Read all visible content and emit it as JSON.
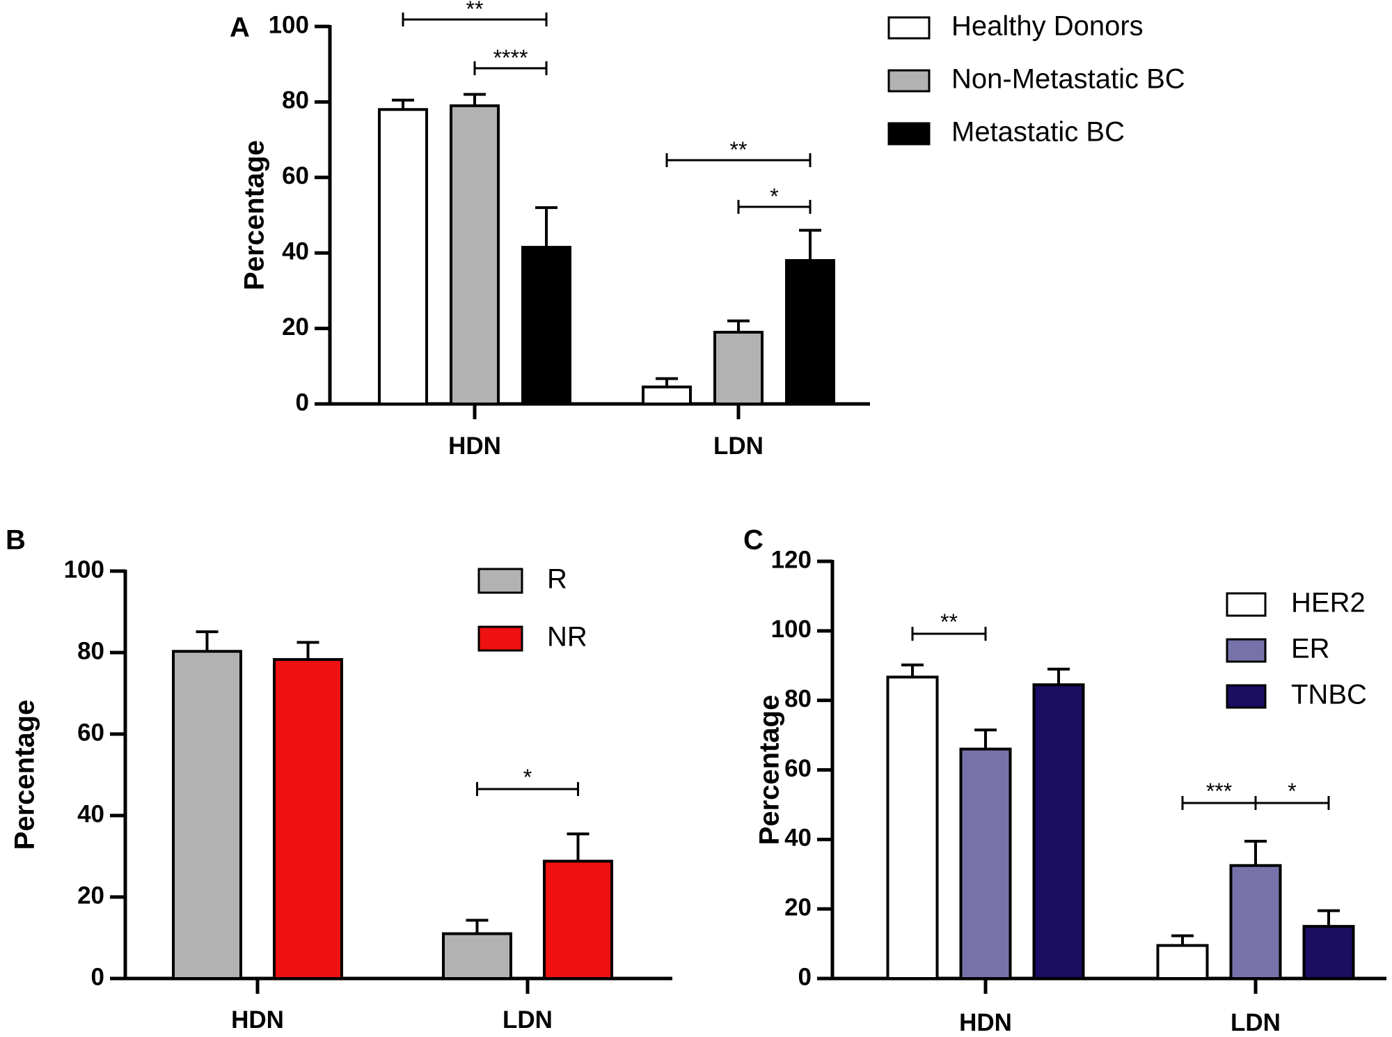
{
  "chart_data": [
    {
      "panel": "A",
      "type": "bar",
      "ylabel": "Percentage",
      "xlabel": "",
      "ylim": [
        0,
        100
      ],
      "yticks": [
        0,
        20,
        40,
        60,
        80,
        100
      ],
      "categories": [
        "HDN",
        "LDN"
      ],
      "legend_position": "top-right",
      "grid": false,
      "series": [
        {
          "name": "Healthy Donors",
          "color": "#ffffff",
          "values": [
            78,
            4.5
          ],
          "errors": [
            2.5,
            2.2
          ]
        },
        {
          "name": "Non-Metastatic BC",
          "color": "#b2b2b2",
          "values": [
            79,
            19
          ],
          "errors": [
            3,
            3
          ]
        },
        {
          "name": "Metastatic BC",
          "color": "#000000",
          "values": [
            41.5,
            38
          ],
          "errors": [
            10.5,
            8
          ]
        }
      ],
      "significance": [
        {
          "category": 0,
          "from": 0,
          "to": 2,
          "label": "**"
        },
        {
          "category": 0,
          "from": 1,
          "to": 2,
          "label": "****"
        },
        {
          "category": 1,
          "from": 0,
          "to": 2,
          "label": "**"
        },
        {
          "category": 1,
          "from": 1,
          "to": 2,
          "label": "*"
        }
      ]
    },
    {
      "panel": "B",
      "type": "bar",
      "ylabel": "Percentage",
      "xlabel": "",
      "ylim": [
        0,
        100
      ],
      "yticks": [
        0,
        20,
        40,
        60,
        80,
        100
      ],
      "categories": [
        "HDN",
        "LDN"
      ],
      "legend_position": "top-right",
      "grid": false,
      "series": [
        {
          "name": "R",
          "color": "#b2b2b2",
          "values": [
            80.3,
            11
          ],
          "errors": [
            4.8,
            3.3
          ]
        },
        {
          "name": "NR",
          "color": "#ee1111",
          "values": [
            78.3,
            28.8
          ],
          "errors": [
            4.2,
            6.7
          ]
        }
      ],
      "significance": [
        {
          "category": 1,
          "from": 0,
          "to": 1,
          "label": "*"
        }
      ]
    },
    {
      "panel": "C",
      "type": "bar",
      "ylabel": "Percentage",
      "xlabel": "",
      "ylim": [
        0,
        120
      ],
      "yticks": [
        0,
        20,
        40,
        60,
        80,
        100,
        120
      ],
      "categories": [
        "HDN",
        "LDN"
      ],
      "legend_position": "top-right",
      "grid": false,
      "series": [
        {
          "name": "HER2",
          "color": "#ffffff",
          "values": [
            86.7,
            9.5
          ],
          "errors": [
            3.5,
            2.8
          ]
        },
        {
          "name": "ER",
          "color": "#7773aa",
          "values": [
            66,
            32.5
          ],
          "errors": [
            5.5,
            7
          ]
        },
        {
          "name": "TNBC",
          "color": "#1a0d62",
          "values": [
            84.5,
            15
          ],
          "errors": [
            4.5,
            4.5
          ]
        }
      ],
      "significance": [
        {
          "category": 0,
          "from": 0,
          "to": 1,
          "label": "**"
        },
        {
          "category": 1,
          "from": 0,
          "to": 1,
          "label": "***"
        },
        {
          "category": 1,
          "from": 1,
          "to": 2,
          "label": "*"
        }
      ]
    }
  ]
}
